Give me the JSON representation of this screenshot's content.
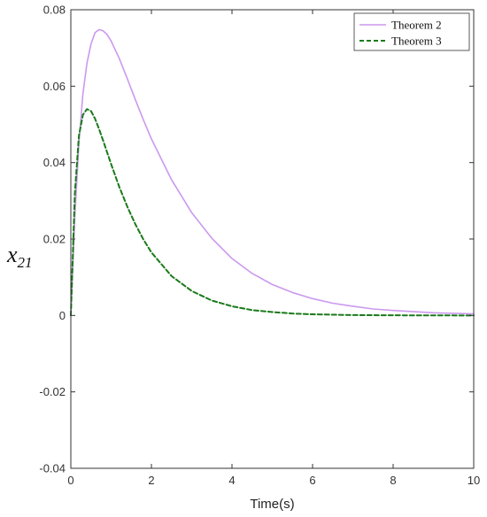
{
  "chart_data": {
    "type": "line",
    "title": "",
    "xlabel": "Time(s)",
    "ylabel": {
      "main": "x",
      "sub": "21"
    },
    "xlim": [
      0,
      10
    ],
    "ylim": [
      -0.04,
      0.08
    ],
    "xticks": [
      0,
      2,
      4,
      6,
      8,
      10
    ],
    "yticks": [
      -0.04,
      -0.02,
      0,
      0.02,
      0.04,
      0.06,
      0.08
    ],
    "xtick_labels": [
      "0",
      "2",
      "4",
      "6",
      "8",
      "10"
    ],
    "ytick_labels": [
      "-0.04",
      "-0.02",
      "0",
      "0.02",
      "0.04",
      "0.06",
      "0.08"
    ],
    "grid": false,
    "legend_position": "top-right",
    "series": [
      {
        "name": "Theorem 2",
        "color": "#cc99ee",
        "dash": "solid",
        "x": [
          0,
          0.1,
          0.2,
          0.3,
          0.4,
          0.5,
          0.6,
          0.7,
          0.8,
          0.9,
          1.0,
          1.2,
          1.4,
          1.6,
          1.8,
          2.0,
          2.5,
          3.0,
          3.5,
          4.0,
          4.5,
          5.0,
          5.5,
          6.0,
          6.5,
          7.0,
          7.5,
          8.0,
          9.0,
          10.0
        ],
        "y": [
          0,
          0.026,
          0.045,
          0.058,
          0.066,
          0.071,
          0.074,
          0.0748,
          0.0745,
          0.0735,
          0.0718,
          0.0673,
          0.062,
          0.0565,
          0.0512,
          0.0462,
          0.0355,
          0.0269,
          0.0202,
          0.0149,
          0.011,
          0.0081,
          0.006,
          0.0044,
          0.0032,
          0.0024,
          0.0017,
          0.0013,
          0.0007,
          0.0004
        ]
      },
      {
        "name": "Theorem 3",
        "color": "#1a7a1a",
        "dash": "dashed",
        "x": [
          0,
          0.1,
          0.2,
          0.3,
          0.4,
          0.5,
          0.6,
          0.7,
          0.8,
          0.9,
          1.0,
          1.2,
          1.4,
          1.6,
          1.8,
          2.0,
          2.5,
          3.0,
          3.5,
          4.0,
          4.5,
          5.0,
          5.5,
          6.0,
          7.0,
          8.0,
          9.0,
          10.0
        ],
        "y": [
          0,
          0.032,
          0.047,
          0.0525,
          0.054,
          0.0535,
          0.0515,
          0.0488,
          0.0458,
          0.0427,
          0.0396,
          0.0337,
          0.0285,
          0.0239,
          0.0199,
          0.0165,
          0.0103,
          0.0064,
          0.0039,
          0.0024,
          0.0014,
          0.0009,
          0.0005,
          0.0003,
          0.0001,
          4e-05,
          1e-05,
          0
        ]
      }
    ]
  }
}
